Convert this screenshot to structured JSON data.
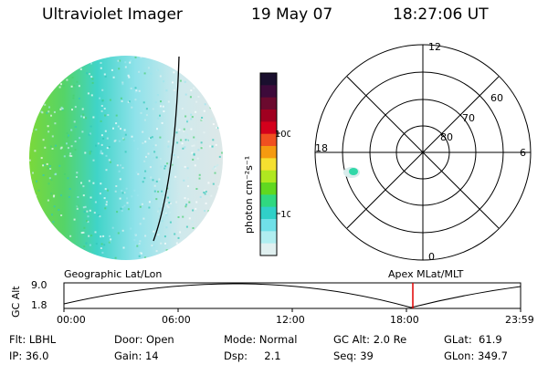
{
  "header": {
    "title": "Ultraviolet Imager",
    "date": "19 May 07",
    "time": "18:27:06 UT"
  },
  "colorbar": {
    "label": "photon cm⁻²s⁻¹",
    "ticks": [
      "100",
      "10"
    ],
    "colors": [
      "#1a0f2e",
      "#3d0a3a",
      "#6b0a2e",
      "#a00020",
      "#d4001c",
      "#f05020",
      "#f59a10",
      "#f5e030",
      "#b0e820",
      "#60d820",
      "#30d880",
      "#30d0c8",
      "#70e0e8",
      "#b0eef0",
      "#e0f0f0"
    ]
  },
  "polar": {
    "labels": [
      "12",
      "6",
      "0",
      "18",
      "80",
      "70",
      "60"
    ]
  },
  "timeline": {
    "left_label": "Geographic Lat/Lon",
    "right_label": "Apex MLat/MLT",
    "axis_title": "GC Alt",
    "y_ticks": [
      "9.0",
      "1.8"
    ],
    "x_ticks": [
      "00:00",
      "06:00",
      "12:00",
      "18:00",
      "23:59"
    ],
    "marker_color": "#e00000"
  },
  "info": {
    "flt": "Flt: LBHL",
    "ip": "IP: 36.0",
    "door": "Door: Open",
    "gain": "Gain: 14",
    "mode": "Mode: Normal",
    "dsp": "Dsp:     2.1",
    "gcalt": "GC Alt: 2.0 Re",
    "seq": "Seq: 39",
    "glat": "GLat:  61.9",
    "glon": "GLon: 349.7"
  }
}
